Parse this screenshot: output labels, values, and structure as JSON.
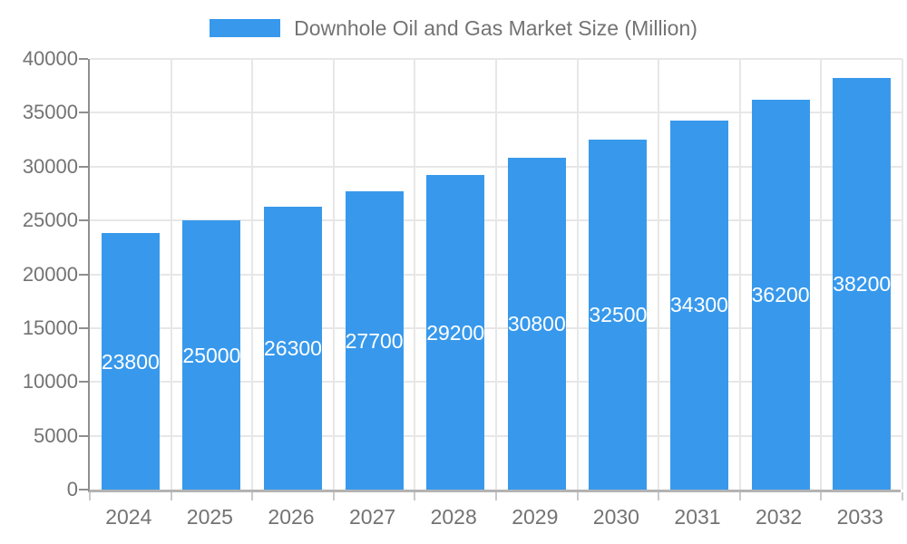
{
  "chart_data": {
    "type": "bar",
    "title": "Downhole Oil and Gas Market Size (Million)",
    "legend": {
      "position": "top",
      "entries": [
        "Downhole Oil and Gas Market Size (Million)"
      ]
    },
    "categories": [
      "2024",
      "2025",
      "2026",
      "2027",
      "2028",
      "2029",
      "2030",
      "2031",
      "2032",
      "2033"
    ],
    "series": [
      {
        "name": "Downhole Oil and Gas Market Size (Million)",
        "values": [
          23800,
          25000,
          26300,
          27700,
          29200,
          30800,
          32500,
          34300,
          36200,
          38200
        ],
        "data_labels": [
          "23800",
          "25000",
          "26300",
          "27700",
          "29200",
          "30800",
          "32500",
          "34300",
          "36200",
          "38200"
        ]
      }
    ],
    "xlabel": "",
    "ylabel": "",
    "ylim": [
      0,
      40000
    ],
    "ytick_step": 5000,
    "yticks": [
      0,
      5000,
      10000,
      15000,
      20000,
      25000,
      30000,
      35000,
      40000
    ],
    "grid": true,
    "colors": {
      "bar": "#3899ec",
      "bar_label_text": "#ffffff",
      "axis_text": "#737373",
      "gridline": "#e7e7e7",
      "y_axis_line": "#8f8f8f",
      "x_axis_line": "#b3b3b3",
      "x_tick": "#c9c9c9"
    }
  }
}
